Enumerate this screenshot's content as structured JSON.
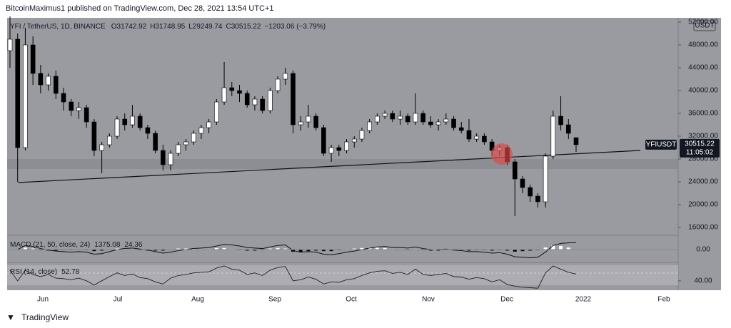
{
  "header": {
    "publisher": "BitcoinMaximus1 published on TradingView.com, Dec 28, 2021 13:54 UTC+1"
  },
  "footer": {
    "brand": "TradingView"
  },
  "chart_data": {
    "type": "candlestick",
    "symbol": "YFI / TetherUS, 1D, BINANCE",
    "ohlc_labels": [
      "O",
      "H",
      "L",
      "C"
    ],
    "change": "−1203.06 (−3.79%)",
    "ticker": "YFIUSDT",
    "countdown": "11:05:02",
    "currency": "USDT",
    "up_color": "#ffffff",
    "down_color": "#000000",
    "categories": [
      "Jun",
      "Jul",
      "Aug",
      "Sep",
      "Oct",
      "Nov",
      "Dec",
      "2022",
      "Feb"
    ],
    "ylim": [
      14625,
      52750
    ],
    "yticks": [
      {
        "value": 16000,
        "label": "16000.00"
      },
      {
        "value": 20000,
        "label": "20000.00"
      },
      {
        "value": 24000,
        "label": "24000.00"
      },
      {
        "value": 28000,
        "label": "28000.00"
      },
      {
        "value": 32000,
        "label": "32000.00"
      },
      {
        "value": 36000,
        "label": "36000.00"
      },
      {
        "value": 40000,
        "label": "40000.00"
      },
      {
        "value": 44000,
        "label": "44000.00"
      },
      {
        "value": 48000,
        "label": "48000.00"
      },
      {
        "value": 52000,
        "label": "52000.00"
      }
    ],
    "ohlc": [
      [
        47000,
        53000,
        44000,
        49000
      ],
      [
        49000,
        50000,
        24000,
        30000
      ],
      [
        30000,
        51000,
        29500,
        48000
      ],
      [
        48000,
        49500,
        41000,
        43000
      ],
      [
        43000,
        44500,
        39500,
        41000
      ],
      [
        41000,
        43000,
        40000,
        42500
      ],
      [
        42500,
        43500,
        38500,
        39500
      ],
      [
        39500,
        40500,
        36500,
        38000
      ],
      [
        38000,
        38500,
        35500,
        36500
      ],
      [
        36500,
        38000,
        35000,
        37000
      ],
      [
        37000,
        37500,
        33500,
        34500
      ],
      [
        34500,
        35000,
        28500,
        29500
      ],
      [
        29500,
        31000,
        25500,
        30500
      ],
      [
        30500,
        32500,
        30000,
        32000
      ],
      [
        32000,
        35500,
        31500,
        35000
      ],
      [
        35000,
        36000,
        33000,
        34000
      ],
      [
        34000,
        37500,
        33500,
        35500
      ],
      [
        35500,
        36000,
        33000,
        33500
      ],
      [
        33500,
        34000,
        31500,
        32500
      ],
      [
        32500,
        33000,
        29000,
        29500
      ],
      [
        29500,
        30500,
        26000,
        27000
      ],
      [
        27000,
        29500,
        26000,
        29000
      ],
      [
        29000,
        31000,
        28500,
        30500
      ],
      [
        30500,
        31500,
        29500,
        31000
      ],
      [
        31000,
        33000,
        30500,
        32500
      ],
      [
        32500,
        34000,
        31500,
        33500
      ],
      [
        33500,
        35000,
        32500,
        34500
      ],
      [
        34500,
        38500,
        34000,
        38000
      ],
      [
        38000,
        45000,
        37500,
        40500
      ],
      [
        40500,
        41500,
        39000,
        40000
      ],
      [
        40000,
        41000,
        38000,
        39500
      ],
      [
        39500,
        40000,
        37000,
        37500
      ],
      [
        37500,
        39000,
        36500,
        38500
      ],
      [
        38500,
        39000,
        36000,
        36500
      ],
      [
        36500,
        40500,
        36000,
        40000
      ],
      [
        40000,
        42500,
        39500,
        42000
      ],
      [
        42000,
        44000,
        41000,
        43000
      ],
      [
        43000,
        43500,
        32500,
        34000
      ],
      [
        34000,
        35500,
        33000,
        34500
      ],
      [
        34500,
        37500,
        33500,
        35500
      ],
      [
        35500,
        36000,
        33000,
        33500
      ],
      [
        33500,
        34000,
        28500,
        29000
      ],
      [
        29000,
        30500,
        27500,
        30000
      ],
      [
        30000,
        30500,
        28500,
        29500
      ],
      [
        29500,
        31500,
        29000,
        31000
      ],
      [
        31000,
        32000,
        30000,
        31500
      ],
      [
        31500,
        33500,
        31000,
        33000
      ],
      [
        33000,
        35000,
        32500,
        34500
      ],
      [
        34500,
        36000,
        34000,
        35500
      ],
      [
        35500,
        36500,
        35000,
        36000
      ],
      [
        36000,
        36500,
        34500,
        35000
      ],
      [
        35000,
        36500,
        34000,
        35500
      ],
      [
        35500,
        36000,
        34000,
        34500
      ],
      [
        34500,
        39500,
        34000,
        36000
      ],
      [
        36000,
        36500,
        34000,
        34500
      ],
      [
        34500,
        35500,
        33500,
        34000
      ],
      [
        34000,
        35000,
        33000,
        34500
      ],
      [
        34500,
        36000,
        34000,
        35000
      ],
      [
        35000,
        35500,
        33000,
        33500
      ],
      [
        33500,
        34500,
        32500,
        33000
      ],
      [
        33000,
        35000,
        31000,
        31500
      ],
      [
        31500,
        32500,
        31000,
        32000
      ],
      [
        32000,
        32500,
        30500,
        31000
      ],
      [
        31000,
        31500,
        28500,
        29500
      ],
      [
        29500,
        30500,
        28500,
        30000
      ],
      [
        30000,
        30500,
        27000,
        27500
      ],
      [
        27500,
        28000,
        18000,
        24500
      ],
      [
        24500,
        25000,
        22000,
        23000
      ],
      [
        23000,
        23500,
        20500,
        21500
      ],
      [
        21500,
        22000,
        19500,
        20500
      ],
      [
        20500,
        29000,
        19500,
        28500
      ],
      [
        28500,
        36500,
        28000,
        35500
      ],
      [
        35500,
        39000,
        33000,
        34000
      ],
      [
        34000,
        35000,
        31500,
        32500
      ],
      [
        31742.92,
        31748.95,
        29249.74,
        30515.22
      ]
    ],
    "macd_title": "MACD (21, 50, close, 24)",
    "macd_ylim": [
      -2500,
      2500
    ],
    "macd_yticks": [
      {
        "value": 0,
        "label": "0.00"
      }
    ],
    "macd": [
      0,
      0,
      800,
      600,
      200,
      -100,
      -300,
      -400,
      -500,
      -400,
      -500,
      -900,
      -800,
      -400,
      0,
      200,
      300,
      100,
      -100,
      -400,
      -700,
      -500,
      -200,
      0,
      200,
      300,
      400,
      700,
      1000,
      900,
      700,
      400,
      300,
      200,
      500,
      800,
      900,
      -200,
      -500,
      -400,
      -500,
      -900,
      -1000,
      -800,
      -500,
      -300,
      0,
      300,
      500,
      600,
      400,
      400,
      300,
      500,
      200,
      0,
      0,
      100,
      -100,
      -200,
      -400,
      -400,
      -500,
      -700,
      -600,
      -900,
      -1400,
      -1500,
      -1600,
      -1500,
      -500,
      800,
      1200,
      1300,
      1375.08
    ],
    "macd_hist": [
      0,
      0,
      400,
      200,
      -100,
      -200,
      -200,
      -100,
      -100,
      0,
      -100,
      -300,
      -200,
      0,
      200,
      200,
      100,
      -100,
      -200,
      -200,
      -200,
      0,
      200,
      200,
      200,
      100,
      100,
      300,
      300,
      100,
      -100,
      -200,
      -200,
      -100,
      200,
      300,
      200,
      -400,
      -500,
      -300,
      -200,
      -300,
      -300,
      -100,
      100,
      200,
      300,
      400,
      400,
      300,
      100,
      0,
      -100,
      100,
      -100,
      -200,
      -200,
      0,
      -100,
      -100,
      -200,
      -100,
      -100,
      -200,
      -100,
      -200,
      -400,
      -300,
      -200,
      -100,
      400,
      800,
      700,
      400,
      24.36
    ],
    "rsi_title": "RSI (14, close)",
    "rsi_ylim": [
      25,
      72
    ],
    "rsi_yticks": [
      {
        "value": 40,
        "label": "40.00"
      }
    ],
    "rsi": [
      60,
      40,
      60,
      52,
      48,
      52,
      45,
      44,
      42,
      45,
      40,
      32,
      40,
      48,
      55,
      50,
      53,
      46,
      44,
      38,
      34,
      45,
      50,
      52,
      55,
      56,
      57,
      64,
      68,
      62,
      60,
      52,
      55,
      50,
      60,
      65,
      67,
      40,
      42,
      47,
      43,
      34,
      38,
      37,
      42,
      44,
      50,
      55,
      58,
      59,
      54,
      56,
      52,
      62,
      52,
      50,
      52,
      54,
      48,
      47,
      43,
      46,
      44,
      38,
      42,
      33,
      30,
      28,
      27,
      26,
      55,
      68,
      62,
      56,
      52.78
    ]
  }
}
